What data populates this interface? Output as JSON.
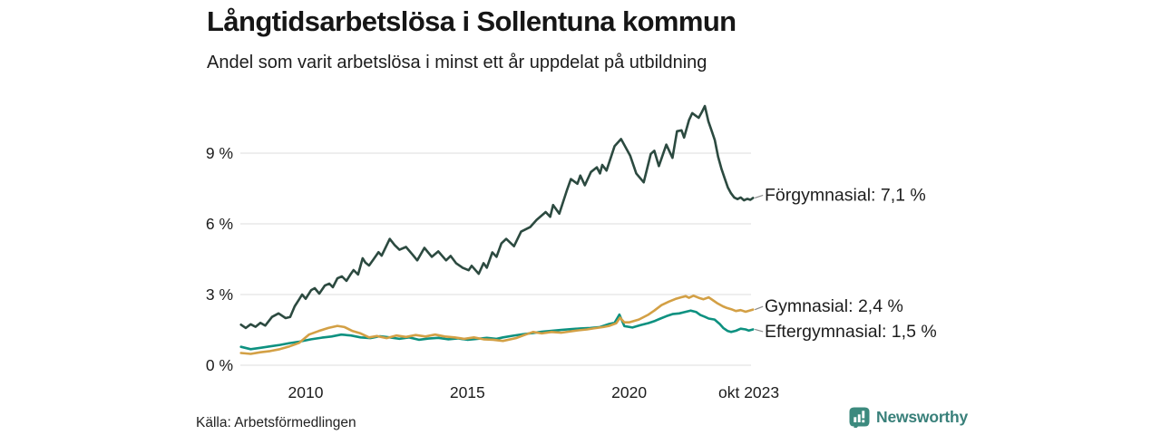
{
  "header": {
    "title": "Långtidsarbetslösa i Sollentuna kommun",
    "subtitle": "Andel som varit arbetslösa i minst ett år uppdelat på utbildning"
  },
  "footer": {
    "source": "Källa: Arbetsförmedlingen",
    "brand": "Newsworthy"
  },
  "colors": {
    "forgymnasial": "#2c4a40",
    "gymnasial": "#d3a045",
    "eftergymnasial": "#0d9180",
    "gridline": "#dcdcdc",
    "text": "#1c1c1c",
    "connector": "#8a8a8a",
    "brand_teal": "#39807a",
    "logo_bg": "#3c8a7e"
  },
  "chart_data": {
    "type": "line",
    "title": "Långtidsarbetslösa i Sollentuna kommun",
    "subtitle": "Andel som varit arbetslösa i minst ett år uppdelat på utbildning",
    "unit": "%",
    "x_range": [
      2008.0,
      2023.83
    ],
    "ylim": [
      0,
      11.2
    ],
    "grid": true,
    "legend_position": "right-end-labels",
    "y_axis": {
      "ticks": [
        {
          "v": 0,
          "label": "0 %"
        },
        {
          "v": 3,
          "label": "3 %"
        },
        {
          "v": 6,
          "label": "6 %"
        },
        {
          "v": 9,
          "label": "9 %"
        }
      ]
    },
    "x_axis": {
      "ticks": [
        {
          "t": 2010,
          "label": "2010"
        },
        {
          "t": 2015,
          "label": "2015"
        },
        {
          "t": 2020,
          "label": "2020"
        },
        {
          "t": 2023.7,
          "label": "okt 2023"
        }
      ]
    },
    "series": [
      {
        "id": "eftergymnasial",
        "name": "Eftergymnasial",
        "end_label": "Eftergymnasial: 1,5 %",
        "last_value": 1.5,
        "color": "#0d9180",
        "label_dy": 2.5,
        "points": [
          [
            2008.0,
            0.78
          ],
          [
            2008.3,
            0.68
          ],
          [
            2008.6,
            0.74
          ],
          [
            2008.9,
            0.8
          ],
          [
            2009.2,
            0.86
          ],
          [
            2009.5,
            0.94
          ],
          [
            2009.8,
            1.0
          ],
          [
            2010.17,
            1.1
          ],
          [
            2010.5,
            1.17
          ],
          [
            2010.8,
            1.22
          ],
          [
            2011.1,
            1.3
          ],
          [
            2011.4,
            1.26
          ],
          [
            2011.7,
            1.18
          ],
          [
            2012.0,
            1.15
          ],
          [
            2012.3,
            1.23
          ],
          [
            2012.6,
            1.18
          ],
          [
            2012.9,
            1.12
          ],
          [
            2013.2,
            1.18
          ],
          [
            2013.5,
            1.08
          ],
          [
            2013.8,
            1.13
          ],
          [
            2014.1,
            1.16
          ],
          [
            2014.4,
            1.1
          ],
          [
            2014.7,
            1.14
          ],
          [
            2015.0,
            1.08
          ],
          [
            2015.3,
            1.12
          ],
          [
            2015.6,
            1.16
          ],
          [
            2015.9,
            1.12
          ],
          [
            2016.1,
            1.18
          ],
          [
            2016.4,
            1.25
          ],
          [
            2016.7,
            1.31
          ],
          [
            2017.03,
            1.37
          ],
          [
            2017.3,
            1.42
          ],
          [
            2017.6,
            1.46
          ],
          [
            2017.9,
            1.5
          ],
          [
            2018.2,
            1.53
          ],
          [
            2018.5,
            1.56
          ],
          [
            2018.8,
            1.58
          ],
          [
            2019.1,
            1.62
          ],
          [
            2019.38,
            1.75
          ],
          [
            2019.55,
            1.8
          ],
          [
            2019.7,
            2.15
          ],
          [
            2019.85,
            1.66
          ],
          [
            2020.1,
            1.6
          ],
          [
            2020.35,
            1.7
          ],
          [
            2020.6,
            1.79
          ],
          [
            2020.8,
            1.88
          ],
          [
            2020.97,
            1.98
          ],
          [
            2021.15,
            2.08
          ],
          [
            2021.34,
            2.17
          ],
          [
            2021.55,
            2.2
          ],
          [
            2021.7,
            2.25
          ],
          [
            2021.9,
            2.32
          ],
          [
            2022.07,
            2.26
          ],
          [
            2022.2,
            2.13
          ],
          [
            2022.35,
            2.05
          ],
          [
            2022.46,
            1.98
          ],
          [
            2022.64,
            1.94
          ],
          [
            2022.8,
            1.75
          ],
          [
            2022.91,
            1.58
          ],
          [
            2023.05,
            1.45
          ],
          [
            2023.15,
            1.41
          ],
          [
            2023.3,
            1.46
          ],
          [
            2023.45,
            1.55
          ],
          [
            2023.6,
            1.52
          ],
          [
            2023.7,
            1.47
          ],
          [
            2023.83,
            1.52
          ]
        ]
      },
      {
        "id": "gymnasial",
        "name": "Gymnasial",
        "end_label": "Gymnasial: 2,4 %",
        "last_value": 2.4,
        "color": "#d3a045",
        "label_dy": -3.5,
        "points": [
          [
            2008.0,
            0.52
          ],
          [
            2008.3,
            0.48
          ],
          [
            2008.6,
            0.55
          ],
          [
            2008.9,
            0.6
          ],
          [
            2009.2,
            0.68
          ],
          [
            2009.5,
            0.8
          ],
          [
            2009.8,
            0.95
          ],
          [
            2010.1,
            1.3
          ],
          [
            2010.4,
            1.45
          ],
          [
            2010.7,
            1.58
          ],
          [
            2010.98,
            1.67
          ],
          [
            2011.2,
            1.62
          ],
          [
            2011.45,
            1.45
          ],
          [
            2011.7,
            1.35
          ],
          [
            2011.96,
            1.18
          ],
          [
            2012.2,
            1.24
          ],
          [
            2012.5,
            1.15
          ],
          [
            2012.8,
            1.26
          ],
          [
            2013.1,
            1.2
          ],
          [
            2013.4,
            1.28
          ],
          [
            2013.7,
            1.22
          ],
          [
            2014.0,
            1.3
          ],
          [
            2014.3,
            1.22
          ],
          [
            2014.6,
            1.18
          ],
          [
            2014.9,
            1.12
          ],
          [
            2015.2,
            1.18
          ],
          [
            2015.5,
            1.1
          ],
          [
            2015.8,
            1.08
          ],
          [
            2016.1,
            1.03
          ],
          [
            2016.5,
            1.15
          ],
          [
            2016.8,
            1.3
          ],
          [
            2017.03,
            1.41
          ],
          [
            2017.3,
            1.35
          ],
          [
            2017.6,
            1.41
          ],
          [
            2017.9,
            1.38
          ],
          [
            2018.2,
            1.44
          ],
          [
            2018.43,
            1.48
          ],
          [
            2018.7,
            1.52
          ],
          [
            2018.9,
            1.56
          ],
          [
            2019.2,
            1.62
          ],
          [
            2019.38,
            1.67
          ],
          [
            2019.6,
            1.78
          ],
          [
            2019.72,
            2.02
          ],
          [
            2019.85,
            1.82
          ],
          [
            2020.0,
            1.82
          ],
          [
            2020.3,
            1.94
          ],
          [
            2020.6,
            2.15
          ],
          [
            2020.78,
            2.32
          ],
          [
            2021.0,
            2.55
          ],
          [
            2021.23,
            2.7
          ],
          [
            2021.43,
            2.81
          ],
          [
            2021.6,
            2.88
          ],
          [
            2021.75,
            2.93
          ],
          [
            2021.85,
            2.86
          ],
          [
            2021.99,
            2.95
          ],
          [
            2022.15,
            2.86
          ],
          [
            2022.3,
            2.8
          ],
          [
            2022.46,
            2.88
          ],
          [
            2022.6,
            2.75
          ],
          [
            2022.74,
            2.62
          ],
          [
            2022.9,
            2.5
          ],
          [
            2023.02,
            2.43
          ],
          [
            2023.15,
            2.38
          ],
          [
            2023.3,
            2.3
          ],
          [
            2023.45,
            2.34
          ],
          [
            2023.6,
            2.27
          ],
          [
            2023.72,
            2.32
          ],
          [
            2023.83,
            2.36
          ]
        ]
      },
      {
        "id": "forgymnasial",
        "name": "Förgymnasial",
        "end_label": "Förgymnasial: 7,1 %",
        "last_value": 7.1,
        "color": "#2c4a40",
        "label_dy": -3,
        "points": [
          [
            2008.0,
            1.72
          ],
          [
            2008.15,
            1.58
          ],
          [
            2008.3,
            1.74
          ],
          [
            2008.45,
            1.63
          ],
          [
            2008.6,
            1.8
          ],
          [
            2008.75,
            1.68
          ],
          [
            2008.96,
            2.05
          ],
          [
            2009.16,
            2.2
          ],
          [
            2009.38,
            2.0
          ],
          [
            2009.52,
            2.05
          ],
          [
            2009.66,
            2.5
          ],
          [
            2009.8,
            2.8
          ],
          [
            2009.89,
            3.0
          ],
          [
            2010.0,
            2.82
          ],
          [
            2010.17,
            3.19
          ],
          [
            2010.28,
            3.27
          ],
          [
            2010.42,
            3.04
          ],
          [
            2010.59,
            3.38
          ],
          [
            2010.73,
            3.46
          ],
          [
            2010.84,
            3.31
          ],
          [
            2010.98,
            3.69
          ],
          [
            2011.12,
            3.77
          ],
          [
            2011.26,
            3.58
          ],
          [
            2011.4,
            3.88
          ],
          [
            2011.48,
            4.04
          ],
          [
            2011.62,
            3.85
          ],
          [
            2011.76,
            4.54
          ],
          [
            2011.85,
            4.35
          ],
          [
            2011.96,
            4.23
          ],
          [
            2012.1,
            4.5
          ],
          [
            2012.25,
            4.8
          ],
          [
            2012.35,
            4.65
          ],
          [
            2012.6,
            5.36
          ],
          [
            2012.75,
            5.1
          ],
          [
            2012.9,
            4.9
          ],
          [
            2013.1,
            5.02
          ],
          [
            2013.3,
            4.7
          ],
          [
            2013.45,
            4.45
          ],
          [
            2013.67,
            4.98
          ],
          [
            2013.9,
            4.6
          ],
          [
            2014.1,
            4.83
          ],
          [
            2014.34,
            4.45
          ],
          [
            2014.48,
            4.64
          ],
          [
            2014.65,
            4.33
          ],
          [
            2014.85,
            4.14
          ],
          [
            2015.04,
            4.03
          ],
          [
            2015.13,
            4.22
          ],
          [
            2015.35,
            3.88
          ],
          [
            2015.5,
            4.33
          ],
          [
            2015.6,
            4.14
          ],
          [
            2015.77,
            4.79
          ],
          [
            2015.9,
            4.6
          ],
          [
            2016.05,
            5.17
          ],
          [
            2016.2,
            5.36
          ],
          [
            2016.44,
            5.05
          ],
          [
            2016.66,
            5.67
          ],
          [
            2016.94,
            5.86
          ],
          [
            2017.14,
            6.17
          ],
          [
            2017.42,
            6.5
          ],
          [
            2017.56,
            6.3
          ],
          [
            2017.65,
            6.8
          ],
          [
            2017.84,
            6.43
          ],
          [
            2018.07,
            7.4
          ],
          [
            2018.2,
            7.9
          ],
          [
            2018.4,
            7.7
          ],
          [
            2018.49,
            8.05
          ],
          [
            2018.63,
            7.64
          ],
          [
            2018.82,
            8.2
          ],
          [
            2019.0,
            8.4
          ],
          [
            2019.1,
            8.14
          ],
          [
            2019.17,
            8.5
          ],
          [
            2019.3,
            8.26
          ],
          [
            2019.55,
            9.3
          ],
          [
            2019.75,
            9.6
          ],
          [
            2020.03,
            8.9
          ],
          [
            2020.22,
            8.14
          ],
          [
            2020.45,
            7.76
          ],
          [
            2020.67,
            8.97
          ],
          [
            2020.78,
            9.1
          ],
          [
            2020.92,
            8.45
          ],
          [
            2021.15,
            9.36
          ],
          [
            2021.34,
            8.8
          ],
          [
            2021.48,
            9.93
          ],
          [
            2021.62,
            9.97
          ],
          [
            2021.7,
            9.66
          ],
          [
            2021.85,
            10.4
          ],
          [
            2021.95,
            10.7
          ],
          [
            2022.05,
            10.6
          ],
          [
            2022.15,
            10.5
          ],
          [
            2022.25,
            10.75
          ],
          [
            2022.34,
            11.0
          ],
          [
            2022.45,
            10.35
          ],
          [
            2022.55,
            9.95
          ],
          [
            2022.65,
            9.55
          ],
          [
            2022.75,
            8.85
          ],
          [
            2022.85,
            8.35
          ],
          [
            2022.95,
            7.95
          ],
          [
            2023.05,
            7.55
          ],
          [
            2023.15,
            7.3
          ],
          [
            2023.25,
            7.12
          ],
          [
            2023.35,
            7.05
          ],
          [
            2023.45,
            7.12
          ],
          [
            2023.55,
            7.0
          ],
          [
            2023.65,
            7.06
          ],
          [
            2023.75,
            7.02
          ],
          [
            2023.83,
            7.1
          ]
        ]
      }
    ]
  }
}
